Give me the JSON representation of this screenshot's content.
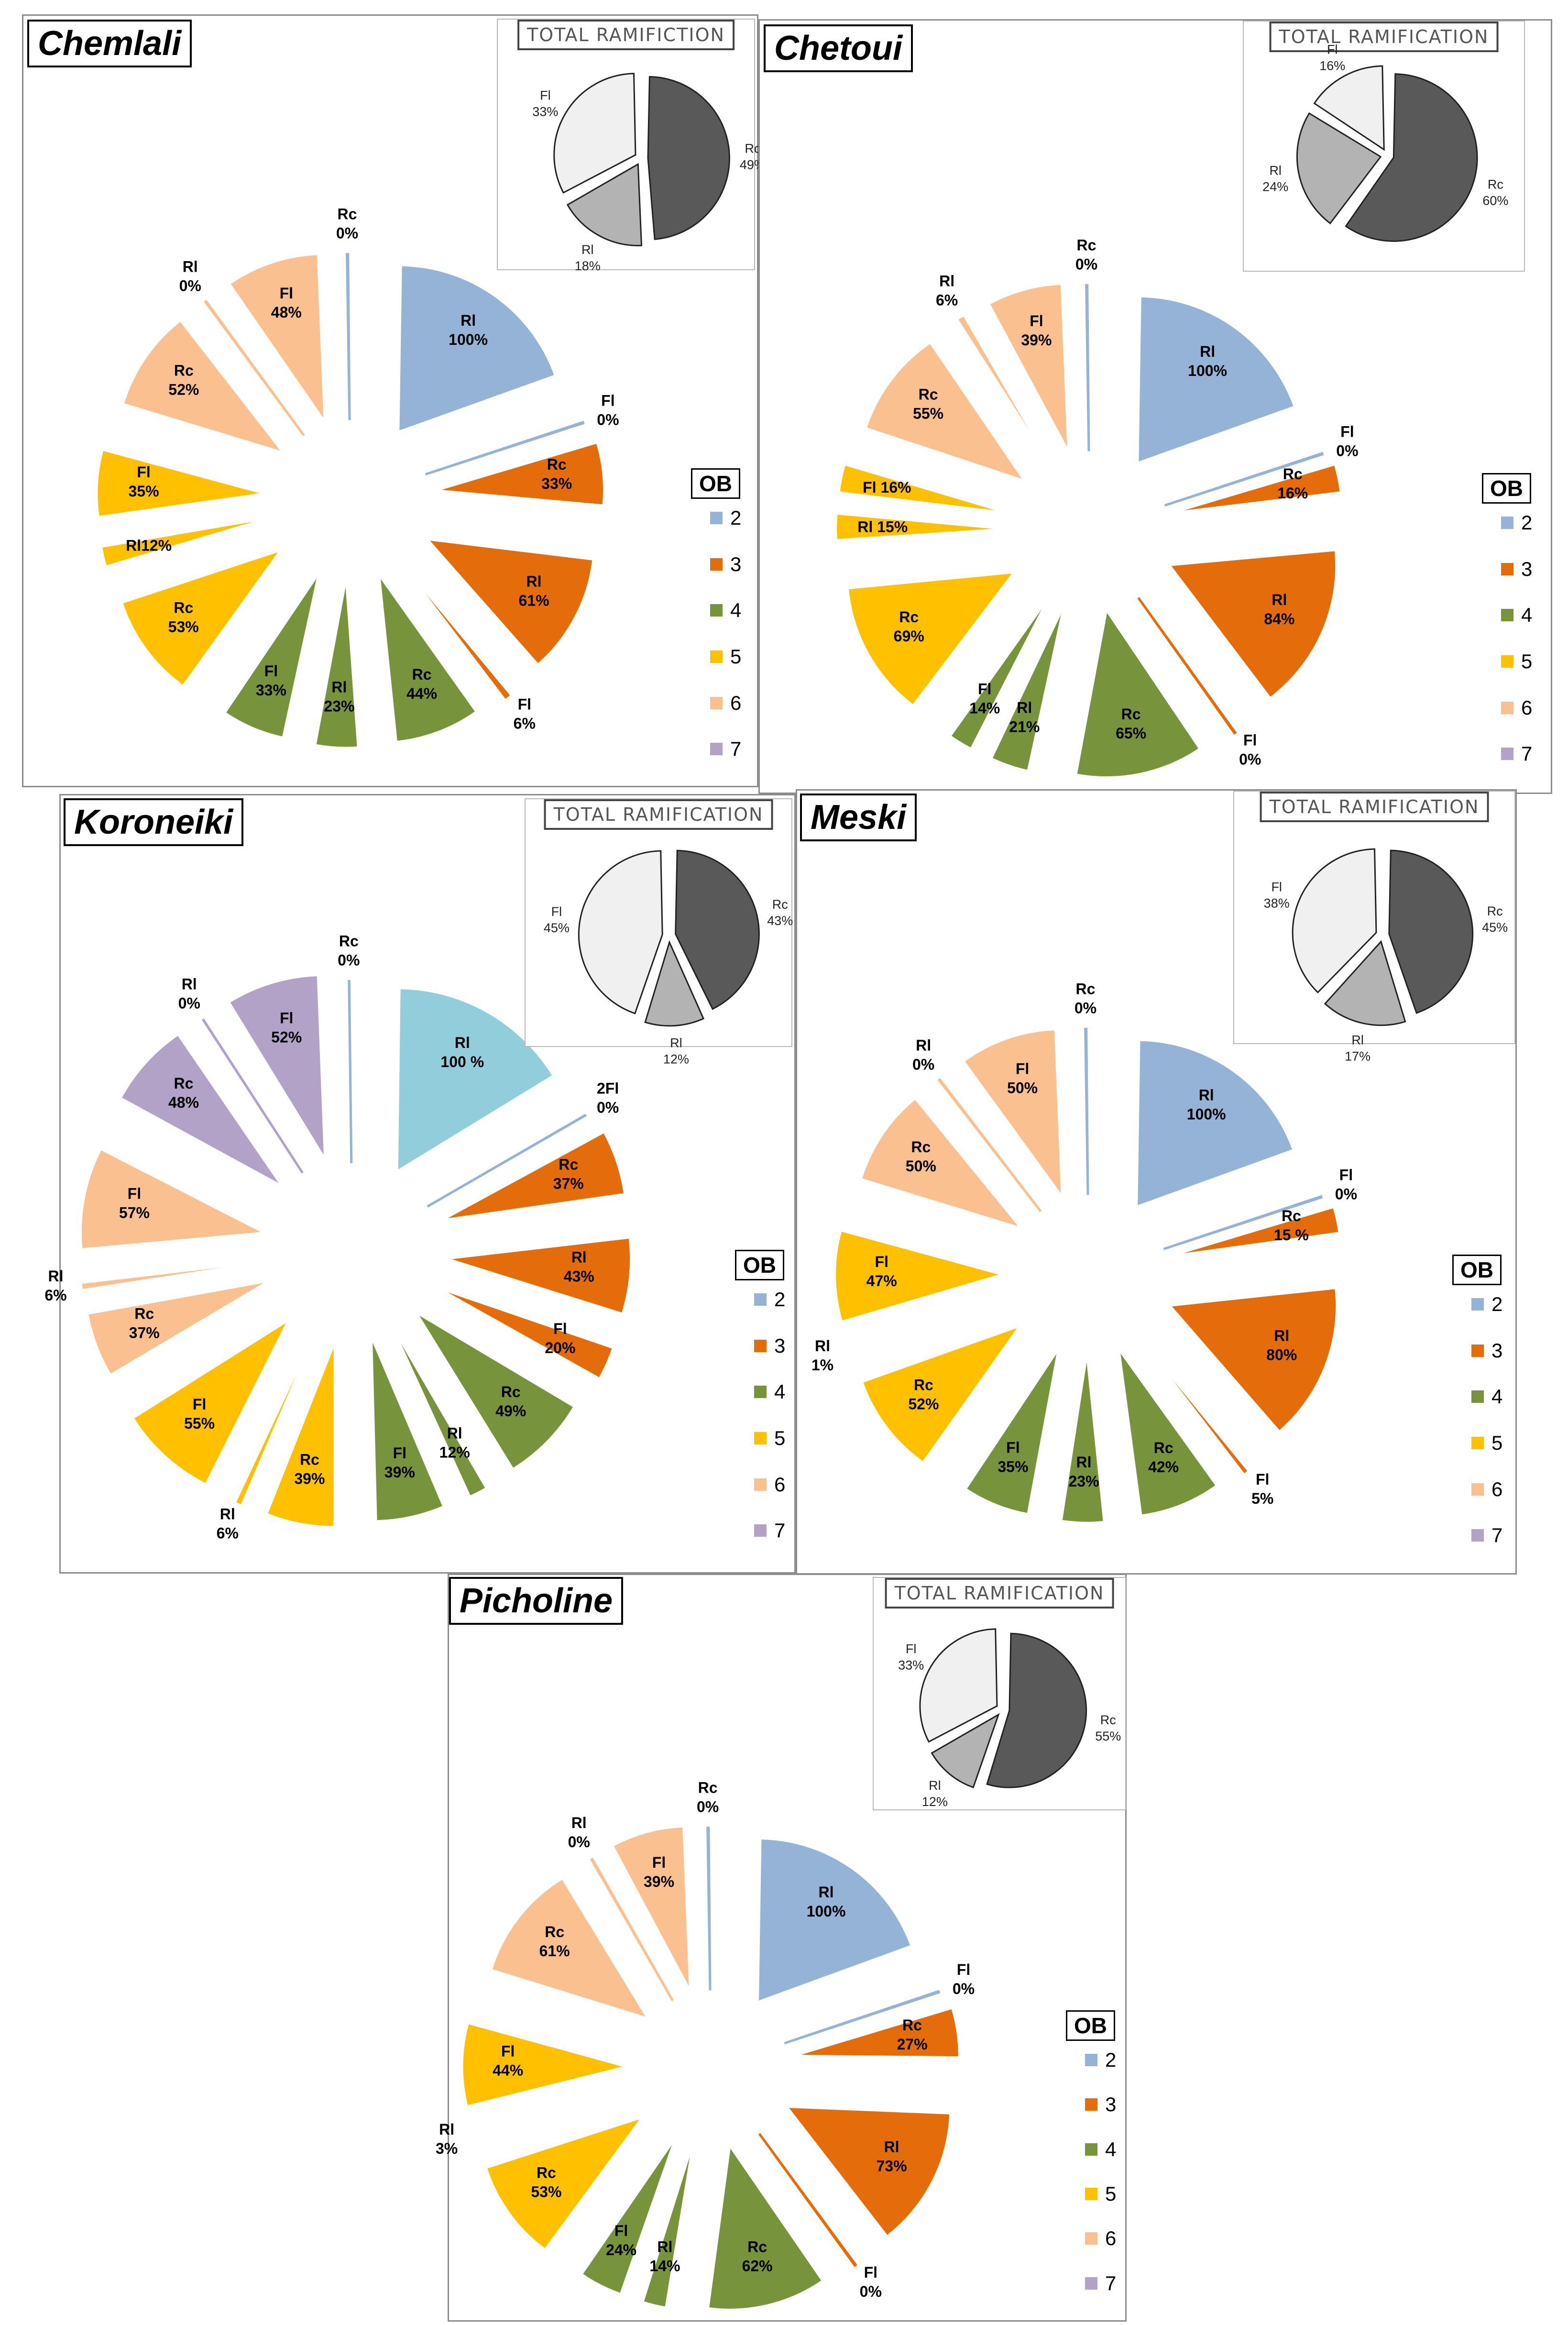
{
  "legend_title": "OB",
  "colors": {
    "2": "#95b3d7",
    "3": "#e46c0a",
    "4": "#77933c",
    "5": "#ffc000",
    "6": "#fac090",
    "7": "#b3a2c7"
  },
  "inset_colors": {
    "Rc": "#595959",
    "Rl": "#b3b3b3",
    "Fl": "#f0f0f0"
  },
  "chart_data": [
    {
      "type": "pie",
      "title": "Chemlali",
      "legend": [
        "2",
        "3",
        "4",
        "5",
        "6",
        "7"
      ],
      "slices": [
        {
          "ob": "2",
          "label": "Rl",
          "pct": "100%",
          "value": 100
        },
        {
          "ob": "2",
          "label": "Fl",
          "pct": "0%",
          "value": 0
        },
        {
          "ob": "3",
          "label": "Rc",
          "pct": "33%",
          "value": 33
        },
        {
          "ob": "3",
          "label": "Rl",
          "pct": "61%",
          "value": 61
        },
        {
          "ob": "3",
          "label": "Fl",
          "pct": "6%",
          "value": 6
        },
        {
          "ob": "4",
          "label": "Rc",
          "pct": "44%",
          "value": 44
        },
        {
          "ob": "4",
          "label": "Rl",
          "pct": "23%",
          "value": 23
        },
        {
          "ob": "4",
          "label": "Fl",
          "pct": "33%",
          "value": 33
        },
        {
          "ob": "5",
          "label": "Rc",
          "pct": "53%",
          "value": 53
        },
        {
          "ob": "5",
          "label": "Rl12%",
          "pct": "",
          "value": 12
        },
        {
          "ob": "5",
          "label": "Fl",
          "pct": "35%",
          "value": 35
        },
        {
          "ob": "6",
          "label": "Rc",
          "pct": "52%",
          "value": 52
        },
        {
          "ob": "6",
          "label": "Rl",
          "pct": "0%",
          "value": 0
        },
        {
          "ob": "6",
          "label": "Fl",
          "pct": "48%",
          "value": 48
        },
        {
          "ob": "2",
          "label": "Rc",
          "pct": "0%",
          "value": 0
        }
      ],
      "total": {
        "title": "TOTAL RAMIFICTION",
        "slices": [
          {
            "label": "Rc",
            "pct": "49%",
            "value": 49
          },
          {
            "label": "Rl",
            "pct": "18%",
            "value": 18
          },
          {
            "label": "Fl",
            "pct": "33%",
            "value": 33
          }
        ]
      }
    },
    {
      "type": "pie",
      "title": "Chetoui",
      "legend": [
        "2",
        "3",
        "4",
        "5",
        "6",
        "7"
      ],
      "slices": [
        {
          "ob": "2",
          "label": "Rl",
          "pct": "100%",
          "value": 100
        },
        {
          "ob": "2",
          "label": "Fl",
          "pct": "0%",
          "value": 0
        },
        {
          "ob": "3",
          "label": "Rc",
          "pct": "16%",
          "value": 16
        },
        {
          "ob": "3",
          "label": "Rl",
          "pct": "84%",
          "value": 84
        },
        {
          "ob": "3",
          "label": "Fl",
          "pct": "0%",
          "value": 0
        },
        {
          "ob": "4",
          "label": "Rc",
          "pct": "65%",
          "value": 65
        },
        {
          "ob": "4",
          "label": "Rl",
          "pct": "21%",
          "value": 21
        },
        {
          "ob": "4",
          "label": "Fl",
          "pct": "14%",
          "value": 14
        },
        {
          "ob": "5",
          "label": "Rc",
          "pct": "69%",
          "value": 69
        },
        {
          "ob": "5",
          "label": "Rl 15%",
          "pct": "",
          "value": 15
        },
        {
          "ob": "5",
          "label": "Fl 16%",
          "pct": "",
          "value": 16
        },
        {
          "ob": "6",
          "label": "Rc",
          "pct": "55%",
          "value": 55
        },
        {
          "ob": "6",
          "label": "Rl",
          "pct": "6%",
          "value": 6
        },
        {
          "ob": "6",
          "label": "Fl",
          "pct": "39%",
          "value": 39
        },
        {
          "ob": "2",
          "label": "Rc",
          "pct": "0%",
          "value": 0
        }
      ],
      "total": {
        "title": "TOTAL RAMIFICATION",
        "slices": [
          {
            "label": "Rc",
            "pct": "60%",
            "value": 60
          },
          {
            "label": "Rl",
            "pct": "24%",
            "value": 24
          },
          {
            "label": "Fl",
            "pct": "16%",
            "value": 16
          }
        ]
      }
    },
    {
      "type": "pie",
      "title": "Koroneiki",
      "legend": [
        "2",
        "3",
        "4",
        "5",
        "6",
        "7"
      ],
      "first_color": "#92cddc",
      "slices": [
        {
          "ob": "2",
          "label": "Rl",
          "pct": "100 %",
          "value": 100
        },
        {
          "ob": "2",
          "label": "2Fl",
          "pct": "0%",
          "value": 0
        },
        {
          "ob": "3",
          "label": "Rc",
          "pct": "37%",
          "value": 37
        },
        {
          "ob": "3",
          "label": "Rl",
          "pct": "43%",
          "value": 43
        },
        {
          "ob": "3",
          "label": "Fl",
          "pct": "20%",
          "value": 20
        },
        {
          "ob": "4",
          "label": "Rc",
          "pct": "49%",
          "value": 49
        },
        {
          "ob": "4",
          "label": "Rl",
          "pct": "12%",
          "value": 12
        },
        {
          "ob": "4",
          "label": "Fl",
          "pct": "39%",
          "value": 39
        },
        {
          "ob": "5",
          "label": "Rc",
          "pct": "39%",
          "value": 39
        },
        {
          "ob": "5",
          "label": "Rl",
          "pct": "6%",
          "value": 6
        },
        {
          "ob": "5",
          "label": "Fl",
          "pct": "55%",
          "value": 55
        },
        {
          "ob": "6",
          "label": "Rc",
          "pct": "37%",
          "value": 37
        },
        {
          "ob": "6",
          "label": "Rl",
          "pct": "6%",
          "value": 6
        },
        {
          "ob": "6",
          "label": "Fl",
          "pct": "57%",
          "value": 57
        },
        {
          "ob": "7",
          "label": "Rc",
          "pct": "48%",
          "value": 48
        },
        {
          "ob": "7",
          "label": "Rl",
          "pct": "0%",
          "value": 0
        },
        {
          "ob": "7",
          "label": "Fl",
          "pct": "52%",
          "value": 52
        },
        {
          "ob": "2",
          "label": "Rc",
          "pct": "0%",
          "value": 0
        }
      ],
      "total": {
        "title": "TOTAL RAMIFICATION",
        "slices": [
          {
            "label": "Rc",
            "pct": "43%",
            "value": 43
          },
          {
            "label": "Rl",
            "pct": "12%",
            "value": 12
          },
          {
            "label": "Fl",
            "pct": "45%",
            "value": 45
          }
        ]
      }
    },
    {
      "type": "pie",
      "title": "Meski",
      "legend": [
        "2",
        "3",
        "4",
        "5",
        "6",
        "7"
      ],
      "slices": [
        {
          "ob": "2",
          "label": "Rl",
          "pct": "100%",
          "value": 100
        },
        {
          "ob": "2",
          "label": "Fl",
          "pct": "0%",
          "value": 0
        },
        {
          "ob": "3",
          "label": "Rc",
          "pct": "15 %",
          "value": 15
        },
        {
          "ob": "3",
          "label": "Rl",
          "pct": "80%",
          "value": 80
        },
        {
          "ob": "3",
          "label": "Fl",
          "pct": "5%",
          "value": 5
        },
        {
          "ob": "4",
          "label": "Rc",
          "pct": "42%",
          "value": 42
        },
        {
          "ob": "4",
          "label": "Rl",
          "pct": "23%",
          "value": 23
        },
        {
          "ob": "4",
          "label": "Fl",
          "pct": "35%",
          "value": 35
        },
        {
          "ob": "5",
          "label": "Rc",
          "pct": "52%",
          "value": 52
        },
        {
          "ob": "5",
          "label": "Rl",
          "pct": "1%",
          "value": 1
        },
        {
          "ob": "5",
          "label": "Fl",
          "pct": "47%",
          "value": 47
        },
        {
          "ob": "6",
          "label": "Rc",
          "pct": "50%",
          "value": 50
        },
        {
          "ob": "6",
          "label": "Rl",
          "pct": "0%",
          "value": 0
        },
        {
          "ob": "6",
          "label": "Fl",
          "pct": "50%",
          "value": 50
        },
        {
          "ob": "2",
          "label": "Rc",
          "pct": "0%",
          "value": 0
        }
      ],
      "total": {
        "title": "TOTAL RAMIFICATION",
        "slices": [
          {
            "label": "Rc",
            "pct": "45%",
            "value": 45
          },
          {
            "label": "Rl",
            "pct": "17%",
            "value": 17
          },
          {
            "label": "Fl",
            "pct": "38%",
            "value": 38
          }
        ]
      }
    },
    {
      "type": "pie",
      "title": "Picholine",
      "legend": [
        "2",
        "3",
        "4",
        "5",
        "6",
        "7"
      ],
      "slices": [
        {
          "ob": "2",
          "label": "Rl",
          "pct": "100%",
          "value": 100
        },
        {
          "ob": "2",
          "label": "Fl",
          "pct": "0%",
          "value": 0
        },
        {
          "ob": "3",
          "label": "Rc",
          "pct": "27%",
          "value": 27
        },
        {
          "ob": "3",
          "label": "Rl",
          "pct": "73%",
          "value": 73
        },
        {
          "ob": "3",
          "label": "Fl",
          "pct": "0%",
          "value": 0
        },
        {
          "ob": "4",
          "label": "Rc",
          "pct": "62%",
          "value": 62
        },
        {
          "ob": "4",
          "label": "Rl",
          "pct": "14%",
          "value": 14
        },
        {
          "ob": "4",
          "label": "Fl",
          "pct": "24%",
          "value": 24
        },
        {
          "ob": "5",
          "label": "Rc",
          "pct": "53%",
          "value": 53
        },
        {
          "ob": "5",
          "label": "Rl",
          "pct": "3%",
          "value": 3
        },
        {
          "ob": "5",
          "label": "Fl",
          "pct": "44%",
          "value": 44
        },
        {
          "ob": "6",
          "label": "Rc",
          "pct": "61%",
          "value": 61
        },
        {
          "ob": "6",
          "label": "Rl",
          "pct": "0%",
          "value": 0
        },
        {
          "ob": "6",
          "label": "Fl",
          "pct": "39%",
          "value": 39
        },
        {
          "ob": "2",
          "label": "Rc",
          "pct": "0%",
          "value": 0
        }
      ],
      "total": {
        "title": "TOTAL RAMIFICATION",
        "slices": [
          {
            "label": "Rc",
            "pct": "55%",
            "value": 55
          },
          {
            "label": "Rl",
            "pct": "12%",
            "value": 12
          },
          {
            "label": "Fl",
            "pct": "33%",
            "value": 33
          }
        ]
      }
    }
  ]
}
